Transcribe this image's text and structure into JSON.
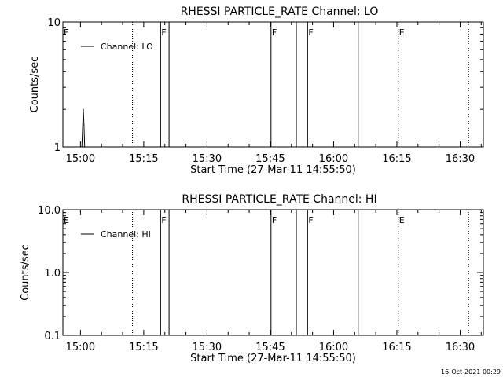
{
  "timestamp": "16-Oct-2021 00:29",
  "chart_data": [
    {
      "type": "line",
      "title": "RHESSI PARTICLE_RATE Channel: LO",
      "xlabel": "Start Time (27-Mar-11 14:55:50)",
      "ylabel": "Counts/sec",
      "yscale": "log",
      "ylim": [
        1,
        10
      ],
      "xlim": [
        "14:55:50",
        "16:35:30"
      ],
      "x_ticks": [
        "15:00",
        "15:15",
        "15:30",
        "15:45",
        "16:00",
        "16:15",
        "16:30"
      ],
      "y_ticks": [
        "1",
        "10"
      ],
      "legend": {
        "placement": "top-left",
        "entries": [
          "Channel: LO"
        ]
      },
      "series": [
        {
          "name": "Channel: LO",
          "x": [
            "15:00:20",
            "15:00:30",
            "15:00:40",
            "15:00:50",
            "15:01:00"
          ],
          "values": [
            1.0,
            1.4,
            2.0,
            1.5,
            1.0
          ]
        }
      ],
      "vertical_lines": [
        {
          "time": "15:12:20",
          "style": "dotted"
        },
        {
          "time": "15:19:00",
          "style": "solid"
        },
        {
          "time": "15:21:00",
          "style": "solid"
        },
        {
          "time": "15:45:10",
          "style": "solid"
        },
        {
          "time": "15:51:10",
          "style": "solid"
        },
        {
          "time": "15:53:50",
          "style": "solid"
        },
        {
          "time": "16:05:50",
          "style": "solid"
        },
        {
          "time": "16:15:20",
          "style": "dotted"
        },
        {
          "time": "16:32:00",
          "style": "dotted"
        }
      ],
      "annotations": [
        {
          "text": "E",
          "time": "14:55:50"
        },
        {
          "text": "F",
          "time": "15:19:00"
        },
        {
          "text": "F",
          "time": "15:45:10"
        },
        {
          "text": "F",
          "time": "15:53:50"
        },
        {
          "text": "E",
          "time": "16:15:20"
        }
      ]
    },
    {
      "type": "line",
      "title": "RHESSI PARTICLE_RATE Channel: HI",
      "xlabel": "Start Time (27-Mar-11 14:55:50)",
      "ylabel": "Counts/sec",
      "yscale": "log",
      "ylim": [
        0.1,
        10
      ],
      "xlim": [
        "14:55:50",
        "16:35:30"
      ],
      "x_ticks": [
        "15:00",
        "15:15",
        "15:30",
        "15:45",
        "16:00",
        "16:15",
        "16:30"
      ],
      "y_ticks": [
        "0.1",
        "1.0",
        "10.0"
      ],
      "legend": {
        "placement": "top-left",
        "entries": [
          "Channel: HI"
        ]
      },
      "series": [
        {
          "name": "Channel: HI",
          "x": [],
          "values": []
        }
      ],
      "vertical_lines": [
        {
          "time": "15:12:20",
          "style": "dotted"
        },
        {
          "time": "15:19:00",
          "style": "solid"
        },
        {
          "time": "15:21:00",
          "style": "solid"
        },
        {
          "time": "15:45:10",
          "style": "solid"
        },
        {
          "time": "15:51:10",
          "style": "solid"
        },
        {
          "time": "15:53:50",
          "style": "solid"
        },
        {
          "time": "16:05:50",
          "style": "solid"
        },
        {
          "time": "16:15:20",
          "style": "dotted"
        },
        {
          "time": "16:32:00",
          "style": "dotted"
        }
      ],
      "annotations": [
        {
          "text": "E",
          "time": "14:55:50"
        },
        {
          "text": "F",
          "time": "15:19:00"
        },
        {
          "text": "F",
          "time": "15:45:10"
        },
        {
          "text": "F",
          "time": "15:53:50"
        },
        {
          "text": "E",
          "time": "16:15:20"
        }
      ]
    }
  ]
}
